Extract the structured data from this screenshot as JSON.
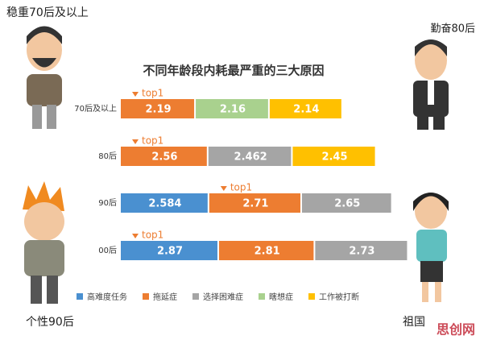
{
  "chart_data": {
    "type": "stacked-bar-horizontal",
    "title": "不同年龄段内耗最严重的三大原因",
    "categories": [
      "70后及以上",
      "80后",
      "90后",
      "00后"
    ],
    "series": [
      {
        "name": "高难度任务",
        "color": "#4a90d0",
        "values": [
          null,
          null,
          2.584,
          2.87
        ]
      },
      {
        "name": "拖延症",
        "color": "#ed7d31",
        "values": [
          2.19,
          2.56,
          2.71,
          2.81
        ]
      },
      {
        "name": "选择困难症",
        "color": "#a5a5a5",
        "values": [
          null,
          2.462,
          2.65,
          2.73
        ]
      },
      {
        "name": "瞎想症",
        "color": "#a9d18e",
        "values": [
          2.16,
          null,
          null,
          null
        ]
      },
      {
        "name": "工作被打断",
        "color": "#ffc000",
        "values": [
          2.14,
          2.45,
          null,
          null
        ]
      }
    ],
    "annotations": [
      "top1",
      "top1",
      "top1",
      "top1"
    ],
    "character_labels": [
      "稳重70后及以上",
      "勤奋80后",
      "个性90后",
      "祖国"
    ],
    "watermark": "思创网"
  }
}
